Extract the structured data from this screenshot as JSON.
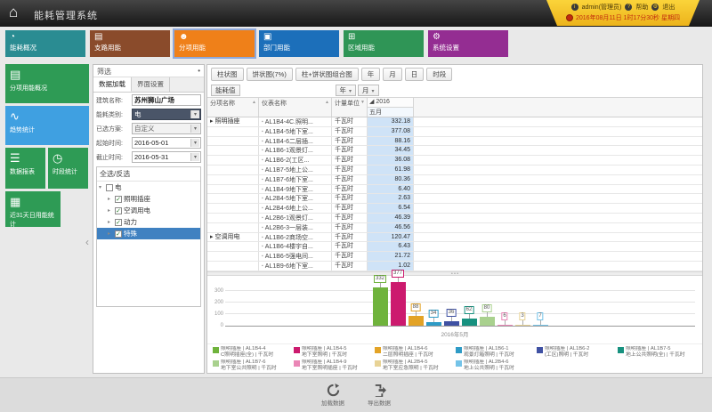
{
  "header": {
    "title": "能耗管理系统",
    "user": "admin(管理员)",
    "help": "帮助",
    "logout": "退出",
    "datetime": "2016年08月11日 1时17分30秒 星期四"
  },
  "modules": [
    {
      "label": "能耗概况",
      "color": "#2a8c92",
      "icon": "gauge-icon",
      "selected": false
    },
    {
      "label": "支路用能",
      "color": "#8a4b2b",
      "icon": "monitor-icon",
      "selected": false
    },
    {
      "label": "分项用能",
      "color": "#ef8019",
      "icon": "person-icon",
      "selected": true
    },
    {
      "label": "部门用能",
      "color": "#1c6fba",
      "icon": "department-icon",
      "selected": false
    },
    {
      "label": "区域用能",
      "color": "#2f9556",
      "icon": "grid-icon",
      "selected": false
    },
    {
      "label": "系统设置",
      "color": "#942d92",
      "icon": "gear-icon",
      "selected": false
    }
  ],
  "sidebar": {
    "collapse_icon": "‹",
    "items": [
      {
        "label": "分项用能概况",
        "color": "#2e9b55",
        "icon": "document-icon",
        "selected": false,
        "w": "full"
      },
      {
        "label": "趋势统计",
        "color": "#3fa0e1",
        "icon": "trend-icon",
        "selected": true,
        "w": "full"
      },
      {
        "label": "数据报表",
        "color": "#2e9b55",
        "icon": "database-icon",
        "selected": false,
        "w": "half"
      },
      {
        "label": "时段统计",
        "color": "#2e9b55",
        "icon": "clock-icon",
        "selected": false,
        "w": "half"
      },
      {
        "label": "近31天日用能统计",
        "color": "#2e9b55",
        "icon": "calendar-icon",
        "selected": false,
        "w": "wide"
      }
    ]
  },
  "filter": {
    "title": "筛选",
    "pin_icon": "•",
    "tabs": [
      {
        "label": "数据加载",
        "active": true
      },
      {
        "label": "界面设置",
        "active": false
      }
    ],
    "fields": [
      {
        "label": "建筑名称:",
        "value": "苏州狮山广场",
        "type": "input"
      },
      {
        "label": "能耗类别:",
        "value": "电",
        "type": "dark"
      },
      {
        "label": "已选方案:",
        "value": "自定义",
        "type": "gray"
      },
      {
        "label": "起始时间:",
        "value": "2016-05-01",
        "type": "date"
      },
      {
        "label": "截止时间:",
        "value": "2016-05-31",
        "type": "date"
      }
    ],
    "tree": {
      "select_all": "全选/反选",
      "root": "电",
      "children": [
        {
          "label": "照明插座",
          "checked": true,
          "selected": false
        },
        {
          "label": "空调用电",
          "checked": true,
          "selected": false
        },
        {
          "label": "动力",
          "checked": true,
          "selected": false
        },
        {
          "label": "特殊",
          "checked": true,
          "selected": true
        }
      ]
    }
  },
  "toolbar": {
    "buttons": [
      "柱状图",
      "饼状图(7%)",
      "柱+饼状图组合图",
      "年",
      "月",
      "日",
      "时段"
    ],
    "measure": "能耗值",
    "column_fields": [
      "年",
      "月"
    ]
  },
  "table": {
    "columns": [
      {
        "label": "分项名称",
        "sort": "▲"
      },
      {
        "label": "仪表名称",
        "sort": "▲"
      },
      {
        "label": "计量单位",
        "sort": "▼"
      }
    ],
    "year_header": "◢ 2016",
    "month_header": "五月",
    "rows": [
      {
        "group": "▸ 照明插座",
        "meter": "AL1B4-4C.照明...",
        "unit": "千瓦时",
        "value": "332.18"
      },
      {
        "group": "",
        "meter": "AL1B4-5地下室...",
        "unit": "千瓦时",
        "value": "377.08"
      },
      {
        "group": "",
        "meter": "AL1B4-6二层插...",
        "unit": "千瓦时",
        "value": "88.16"
      },
      {
        "group": "",
        "meter": "AL1B6-1观景灯...",
        "unit": "千瓦时",
        "value": "34.45"
      },
      {
        "group": "",
        "meter": "AL1B6-2(工区...",
        "unit": "千瓦时",
        "value": "36.08"
      },
      {
        "group": "",
        "meter": "AL1B7-5地上公...",
        "unit": "千瓦时",
        "value": "61.98"
      },
      {
        "group": "",
        "meter": "AL1B7-6地下室...",
        "unit": "千瓦时",
        "value": "80.36"
      },
      {
        "group": "",
        "meter": "AL1B4-9地下室...",
        "unit": "千瓦时",
        "value": "6.40"
      },
      {
        "group": "",
        "meter": "AL2B4-5地下室...",
        "unit": "千瓦时",
        "value": "2.63"
      },
      {
        "group": "",
        "meter": "AL2B4-6地上公...",
        "unit": "千瓦时",
        "value": "6.54"
      },
      {
        "group": "",
        "meter": "AL2B6-1观景灯...",
        "unit": "千瓦时",
        "value": "46.39"
      },
      {
        "group": "",
        "meter": "AL2B6-3一层装...",
        "unit": "千瓦时",
        "value": "46.56"
      },
      {
        "group": "▸ 空调用电",
        "meter": "AL1B6-2商场空...",
        "unit": "千瓦时",
        "value": "120.47"
      },
      {
        "group": "",
        "meter": "AL1B6-4楼宇自...",
        "unit": "千瓦时",
        "value": "6.43"
      },
      {
        "group": "",
        "meter": "AL1B6-5强电间...",
        "unit": "千瓦时",
        "value": "21.72"
      },
      {
        "group": "",
        "meter": "AL1B9-6地下室...",
        "unit": "千瓦时",
        "value": "1.02"
      }
    ]
  },
  "chart_data": {
    "type": "bar",
    "title": "",
    "xlabel": "2016年5月",
    "ylabel": "",
    "ylim": [
      0,
      400
    ],
    "yticks": [
      0,
      100,
      200,
      300
    ],
    "x_group_label": "2016年5月",
    "series": [
      {
        "name": "照明插座 | AL1B4-4 C照明插座(全)",
        "value": 332.18,
        "color": "#6fb33c"
      },
      {
        "name": "照明插座 | AL1B4-5 地下室照明",
        "value": 377.08,
        "color": "#cc1a6e"
      },
      {
        "name": "照明插座 | AL1B4-6 二层照明插座",
        "value": 88.16,
        "color": "#e3a326"
      },
      {
        "name": "照明插座 | AL1B6-1 观景灯箱照明",
        "value": 34.45,
        "color": "#2e9bc6"
      },
      {
        "name": "照明插座 | AL1B6-2 (工区)照明",
        "value": 36.08,
        "color": "#3f51a3"
      },
      {
        "name": "照明插座 | AL1B7-5 地上公共照明(全)",
        "value": 61.98,
        "color": "#17917f"
      },
      {
        "name": "照明插座 | AL1B7-6 地下室公共照明",
        "value": 80.36,
        "color": "#a9d18e"
      },
      {
        "name": "照明插座 | AL1B4-9 地下室照明插座",
        "value": 6.4,
        "color": "#ea86b6"
      },
      {
        "name": "照明插座 | AL2B4-5 地下室应急照明",
        "value": 2.63,
        "color": "#e8d396"
      },
      {
        "name": "照明插座 | AL2B4-6 地上公共照明",
        "value": 6.54,
        "color": "#74c3e8"
      }
    ]
  },
  "legend": [
    {
      "l1": "照明插座 | AL1B4-4",
      "l2": "C照明插座(全) | 千瓦时",
      "color": "#6fb33c"
    },
    {
      "l1": "照明插座 | AL1B4-5",
      "l2": "地下室照明 | 千瓦时",
      "color": "#cc1a6e"
    },
    {
      "l1": "照明插座 | AL1B4-6",
      "l2": "二层照明插座 | 千瓦时",
      "color": "#e3a326"
    },
    {
      "l1": "照明插座 | AL1B6-1",
      "l2": "观景灯箱照明 | 千瓦时",
      "color": "#2e9bc6"
    },
    {
      "l1": "照明插座 | AL1B6-2",
      "l2": "(工区)照明 | 千瓦时",
      "color": "#3f51a3"
    },
    {
      "l1": "照明插座 | AL1B7-5",
      "l2": "地上公共照明(全) | 千瓦时",
      "color": "#17917f"
    },
    {
      "l1": "照明插座 | AL1B7-6",
      "l2": "地下室公共照明 | 千瓦时",
      "color": "#a9d18e"
    },
    {
      "l1": "照明插座 | AL1B4-9",
      "l2": "地下室照明插座 | 千瓦时",
      "color": "#ea86b6"
    },
    {
      "l1": "照明插座 | AL2B4-5",
      "l2": "地下室应急照明 | 千瓦时",
      "color": "#e8d396"
    },
    {
      "l1": "照明插座 | AL2B4-6",
      "l2": "地上公共照明 | 千瓦时",
      "color": "#74c3e8"
    }
  ],
  "footer": {
    "reload": "加载数据",
    "export": "导出数据"
  }
}
